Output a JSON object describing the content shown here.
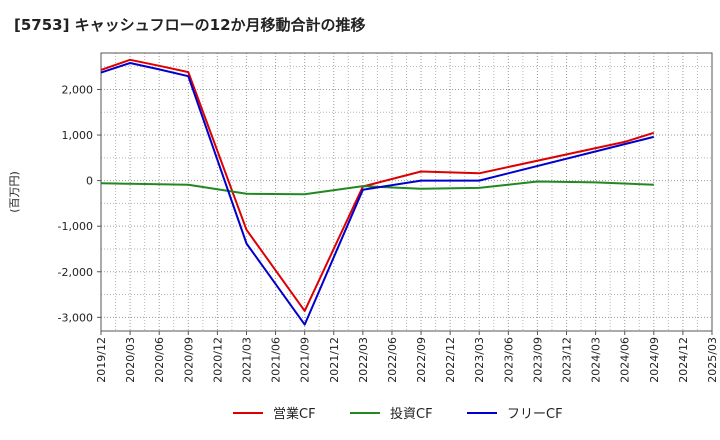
{
  "chart_data": {
    "type": "line",
    "title": "[5753]  キャッシュフローの12か月移動合計の推移",
    "ylabel": "(百万円)",
    "xlabel": "",
    "ylim": [
      -3300,
      2800
    ],
    "yticks": [
      -3000,
      -2000,
      -1000,
      0,
      1000,
      2000
    ],
    "ytick_labels": [
      "-3,000",
      "-2,000",
      "-1,000",
      "0",
      "1,000",
      "2,000"
    ],
    "categories": [
      "2019/12",
      "2020/03",
      "2020/06",
      "2020/09",
      "2020/12",
      "2021/03",
      "2021/06",
      "2021/09",
      "2021/12",
      "2022/03",
      "2022/06",
      "2022/09",
      "2022/12",
      "2023/03",
      "2023/06",
      "2023/09",
      "2023/12",
      "2024/03",
      "2024/06",
      "2024/09",
      "2024/12",
      "2025/03"
    ],
    "series": [
      {
        "name": "営業CF",
        "color": "#dd0000",
        "values": [
          2430,
          2650,
          2520,
          2380,
          null,
          -1080,
          null,
          -2860,
          null,
          -130,
          null,
          200,
          null,
          160,
          null,
          null,
          null,
          null,
          850,
          1050,
          null,
          null
        ]
      },
      {
        "name": "投資CF",
        "color": "#228822",
        "values": [
          -60,
          -70,
          -80,
          -90,
          null,
          -290,
          null,
          -300,
          null,
          -120,
          null,
          -180,
          null,
          -160,
          null,
          -20,
          null,
          -40,
          null,
          -90,
          null,
          null
        ]
      },
      {
        "name": "フリーCF",
        "color": "#0000cc",
        "values": [
          2370,
          2580,
          2440,
          2290,
          null,
          -1380,
          null,
          -3160,
          null,
          -200,
          null,
          0,
          null,
          0,
          null,
          null,
          null,
          null,
          800,
          960,
          null,
          null
        ]
      }
    ],
    "grid": true,
    "legend_position": "bottom"
  }
}
